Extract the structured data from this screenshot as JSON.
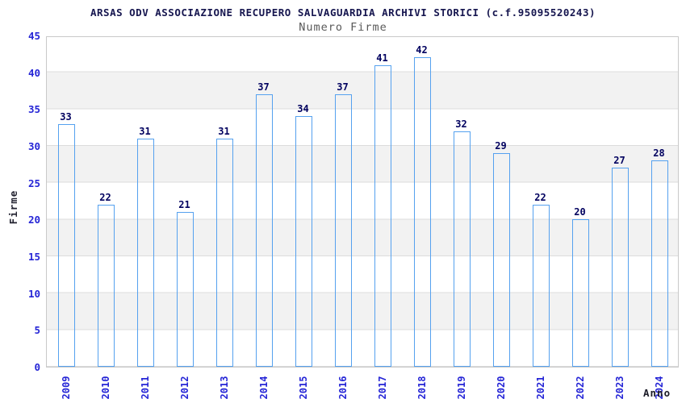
{
  "header": {
    "title": "ARSAS ODV ASSOCIAZIONE RECUPERO SALVAGUARDIA ARCHIVI STORICI (c.f.95095520243)",
    "subtitle": "Numero Firme"
  },
  "chart_data": {
    "type": "bar",
    "title": "Numero Firme",
    "categories": [
      "2009",
      "2010",
      "2011",
      "2012",
      "2013",
      "2014",
      "2015",
      "2016",
      "2017",
      "2018",
      "2019",
      "2020",
      "2021",
      "2022",
      "2023",
      "2024"
    ],
    "values": [
      33,
      22,
      31,
      21,
      31,
      37,
      34,
      37,
      41,
      42,
      32,
      29,
      22,
      20,
      27,
      28
    ],
    "xlabel": "Anno",
    "ylabel": "Firme",
    "ylim": [
      0,
      45
    ],
    "yticks": [
      0,
      5,
      10,
      15,
      20,
      25,
      30,
      35,
      40,
      45
    ],
    "grid": "horizontal-bands-alternating",
    "legend_position": "none",
    "colors": {
      "bar_fill_dark": "#17176b",
      "bar_fill_highlight": "#b9b9d6",
      "bar_border": "#55a1ef",
      "value_label": "#00005f",
      "tick_label": "#2525d6",
      "axis_title": "#222230",
      "title_text": "#16164f",
      "subtitle_text": "#595959",
      "band_gray": "#f2f2f2",
      "gridline": "#dcdcdc",
      "plot_border": "#c9c9c9",
      "background": "#ffffff"
    }
  }
}
